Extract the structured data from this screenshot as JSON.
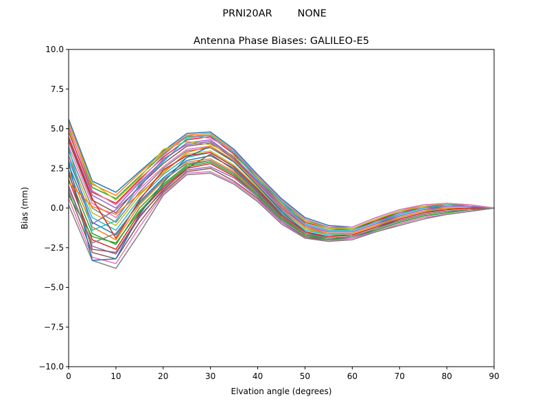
{
  "chart_data": {
    "type": "line",
    "suptitle": "PRNI20AR        NONE",
    "title": "Antenna Phase Biases: GALILEO-E5",
    "xlabel": "Elvation angle (degrees)",
    "ylabel": "Bias (mm)",
    "xlim": [
      0,
      90
    ],
    "ylim": [
      -10,
      10
    ],
    "xticks": [
      0,
      10,
      20,
      30,
      40,
      50,
      60,
      70,
      80,
      90
    ],
    "yticks": [
      -10.0,
      -7.5,
      -5.0,
      -2.5,
      0.0,
      2.5,
      5.0,
      7.5,
      10.0
    ],
    "ytick_labels": [
      "−10.0",
      "−7.5",
      "−5.0",
      "−2.5",
      "0.0",
      "2.5",
      "5.0",
      "7.5",
      "10.0"
    ],
    "xtick_labels": [
      "0",
      "10",
      "20",
      "30",
      "40",
      "50",
      "60",
      "70",
      "80",
      "90"
    ],
    "grid": false,
    "legend": "none",
    "colors": [
      "#1f77b4",
      "#ff7f0e",
      "#2ca02c",
      "#d62728",
      "#9467bd",
      "#8c564b",
      "#e377c2",
      "#7f7f7f",
      "#bcbd22",
      "#17becf"
    ],
    "x": [
      0,
      5,
      10,
      15,
      20,
      25,
      30,
      35,
      40,
      45,
      50,
      55,
      60,
      65,
      70,
      75,
      80,
      85,
      90
    ],
    "series": [
      {
        "values": [
          5.6,
          1.7,
          1.0,
          2.3,
          3.6,
          4.7,
          4.8,
          3.7,
          2.1,
          0.6,
          -0.6,
          -1.1,
          -1.2,
          -0.6,
          -0.1,
          0.2,
          0.3,
          0.2,
          0.0
        ]
      },
      {
        "values": [
          5.4,
          1.5,
          0.8,
          2.2,
          3.5,
          4.6,
          4.7,
          3.6,
          2.0,
          0.5,
          -0.7,
          -1.2,
          -1.3,
          -0.7,
          -0.2,
          0.2,
          0.3,
          0.2,
          0.0
        ]
      },
      {
        "values": [
          5.1,
          1.3,
          0.6,
          2.0,
          3.4,
          4.5,
          4.6,
          3.5,
          1.9,
          0.4,
          -0.8,
          -1.2,
          -1.3,
          -0.8,
          -0.2,
          0.1,
          0.2,
          0.2,
          0.0
        ]
      },
      {
        "values": [
          4.8,
          1.0,
          0.3,
          1.8,
          3.2,
          4.3,
          4.5,
          3.4,
          1.8,
          0.3,
          -0.9,
          -1.3,
          -1.4,
          -0.8,
          -0.3,
          0.1,
          0.2,
          0.1,
          0.0
        ]
      },
      {
        "values": [
          4.5,
          0.8,
          0.0,
          1.6,
          3.0,
          4.1,
          4.3,
          3.2,
          1.7,
          0.2,
          -1.0,
          -1.4,
          -1.4,
          -0.9,
          -0.3,
          0.0,
          0.2,
          0.1,
          0.0
        ]
      },
      {
        "values": [
          4.2,
          0.5,
          -0.3,
          1.4,
          2.8,
          3.9,
          4.1,
          3.1,
          1.6,
          0.1,
          -1.1,
          -1.5,
          -1.5,
          -1.0,
          -0.4,
          0.0,
          0.1,
          0.1,
          0.0
        ]
      },
      {
        "values": [
          3.9,
          0.3,
          -0.6,
          1.2,
          2.6,
          3.7,
          3.9,
          3.0,
          1.5,
          0.0,
          -1.2,
          -1.5,
          -1.5,
          -1.0,
          -0.5,
          -0.1,
          0.1,
          0.1,
          0.0
        ]
      },
      {
        "values": [
          3.6,
          0.0,
          -0.9,
          1.0,
          2.5,
          3.6,
          3.8,
          2.9,
          1.4,
          -0.1,
          -1.3,
          -1.6,
          -1.6,
          -1.1,
          -0.5,
          -0.1,
          0.0,
          0.0,
          0.0
        ]
      },
      {
        "values": [
          3.3,
          -0.3,
          -1.1,
          0.8,
          2.3,
          3.4,
          3.6,
          2.7,
          1.3,
          -0.2,
          -1.3,
          -1.7,
          -1.6,
          -1.1,
          -0.6,
          -0.2,
          0.0,
          0.0,
          0.0
        ]
      },
      {
        "values": [
          3.0,
          -0.6,
          -1.4,
          0.6,
          2.1,
          3.2,
          3.5,
          2.6,
          1.2,
          -0.3,
          -1.4,
          -1.7,
          -1.7,
          -1.2,
          -0.6,
          -0.2,
          -0.1,
          0.0,
          0.0
        ]
      },
      {
        "values": [
          2.7,
          -0.9,
          -1.7,
          0.4,
          1.9,
          3.0,
          3.3,
          2.5,
          1.1,
          -0.4,
          -1.5,
          -1.8,
          -1.7,
          -1.2,
          -0.7,
          -0.3,
          -0.1,
          0.0,
          0.0
        ]
      },
      {
        "values": [
          2.4,
          -1.2,
          -2.0,
          0.2,
          1.7,
          2.9,
          3.1,
          2.3,
          1.0,
          -0.5,
          -1.6,
          -1.9,
          -1.8,
          -1.3,
          -0.8,
          -0.4,
          -0.2,
          -0.1,
          0.0
        ]
      },
      {
        "values": [
          2.1,
          -1.6,
          -2.3,
          0.0,
          1.5,
          2.7,
          3.0,
          2.2,
          0.9,
          -0.6,
          -1.7,
          -1.9,
          -1.8,
          -1.3,
          -0.8,
          -0.4,
          -0.2,
          -0.1,
          0.0
        ]
      },
      {
        "values": [
          1.8,
          -2.0,
          -2.6,
          -0.3,
          1.3,
          2.5,
          2.8,
          2.0,
          0.8,
          -0.7,
          -1.7,
          -2.0,
          -1.8,
          -1.4,
          -0.9,
          -0.5,
          -0.3,
          -0.1,
          0.0
        ]
      },
      {
        "values": [
          1.4,
          -2.4,
          -2.9,
          -0.6,
          1.2,
          2.4,
          2.6,
          1.9,
          0.7,
          -0.8,
          -1.8,
          -2.0,
          -1.9,
          -1.4,
          -0.9,
          -0.5,
          -0.3,
          -0.1,
          0.0
        ]
      },
      {
        "values": [
          1.0,
          -2.8,
          -3.2,
          -0.9,
          1.0,
          2.3,
          2.5,
          1.7,
          0.6,
          -0.9,
          -1.8,
          -2.1,
          -1.9,
          -1.5,
          -1.0,
          -0.6,
          -0.4,
          -0.2,
          0.0
        ]
      },
      {
        "values": [
          0.6,
          -3.1,
          -3.5,
          -1.2,
          0.9,
          2.2,
          2.3,
          1.6,
          0.5,
          -0.9,
          -1.9,
          -2.1,
          -1.9,
          -1.5,
          -1.0,
          -0.6,
          -0.4,
          -0.2,
          0.0
        ]
      },
      {
        "values": [
          0.2,
          -3.3,
          -3.8,
          -1.6,
          0.8,
          2.1,
          2.2,
          1.5,
          0.4,
          -1.0,
          -1.9,
          -2.1,
          -2.0,
          -1.5,
          -1.1,
          -0.7,
          -0.4,
          -0.2,
          0.0
        ]
      },
      {
        "values": [
          4.9,
          1.6,
          0.5,
          1.9,
          3.7,
          4.2,
          4.0,
          3.3,
          1.9,
          0.3,
          -0.8,
          -1.3,
          -1.3,
          -0.7,
          -0.2,
          0.1,
          0.3,
          0.2,
          0.0
        ]
      },
      {
        "values": [
          3.8,
          -1.4,
          -0.8,
          1.5,
          2.9,
          4.4,
          4.6,
          3.5,
          1.8,
          0.4,
          -1.0,
          -1.4,
          -1.4,
          -0.9,
          -0.4,
          0.0,
          0.2,
          0.1,
          0.0
        ]
      },
      {
        "values": [
          2.9,
          -3.3,
          -3.2,
          -0.4,
          1.6,
          3.2,
          3.9,
          2.9,
          1.4,
          -0.2,
          -1.5,
          -1.9,
          -1.8,
          -1.3,
          -0.7,
          -0.3,
          -0.1,
          0.0,
          0.0
        ]
      },
      {
        "values": [
          1.6,
          0.1,
          -0.4,
          0.9,
          2.2,
          3.5,
          3.9,
          3.0,
          1.5,
          0.1,
          -1.2,
          -1.6,
          -1.6,
          -1.1,
          -0.6,
          -0.2,
          0.0,
          0.0,
          0.0
        ]
      },
      {
        "values": [
          0.8,
          -1.8,
          -2.2,
          -0.2,
          1.4,
          2.6,
          2.9,
          2.1,
          0.8,
          -0.7,
          -1.7,
          -2.0,
          -1.8,
          -1.4,
          -0.9,
          -0.5,
          -0.3,
          -0.1,
          0.0
        ]
      },
      {
        "values": [
          4.4,
          0.6,
          -1.9,
          0.5,
          2.4,
          3.3,
          3.5,
          2.6,
          1.2,
          -0.4,
          -1.5,
          -1.8,
          -1.7,
          -1.2,
          -0.7,
          -0.3,
          -0.1,
          0.0,
          0.0
        ]
      },
      {
        "values": [
          3.3,
          -1.0,
          -0.1,
          1.3,
          3.1,
          4.0,
          4.2,
          3.2,
          1.6,
          0.0,
          -1.1,
          -1.5,
          -1.5,
          -1.0,
          -0.5,
          -0.1,
          0.1,
          0.1,
          0.0
        ]
      },
      {
        "values": [
          2.3,
          -2.6,
          -2.8,
          -0.5,
          1.1,
          2.5,
          3.4,
          2.4,
          1.0,
          -0.5,
          -1.6,
          -1.9,
          -1.8,
          -1.3,
          -0.8,
          -0.4,
          -0.2,
          -0.1,
          0.0
        ]
      },
      {
        "values": [
          5.2,
          1.1,
          0.2,
          1.7,
          3.3,
          4.6,
          4.4,
          3.6,
          2.0,
          0.5,
          -0.7,
          -1.2,
          -1.2,
          -0.6,
          -0.1,
          0.2,
          0.3,
          0.2,
          0.0
        ]
      },
      {
        "values": [
          1.2,
          -2.2,
          -1.6,
          0.3,
          1.8,
          2.8,
          3.0,
          2.2,
          0.9,
          -0.6,
          -1.6,
          -1.9,
          -1.8,
          -1.3,
          -0.8,
          -0.4,
          -0.2,
          -0.1,
          0.0
        ]
      }
    ]
  }
}
